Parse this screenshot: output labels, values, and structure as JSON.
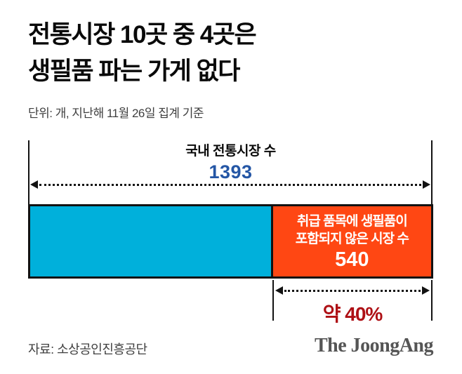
{
  "title": {
    "line1": "전통시장 10곳 중 4곳은",
    "line2": "생필품 파는 가게 없다"
  },
  "subtitle": "단위: 개, 지난해 11월 26일 집계 기준",
  "chart_data": {
    "type": "bar",
    "orientation": "horizontal",
    "title": "전통시장 10곳 중 4곳은 생필품 파는 가게 없다",
    "unit_note": "단위: 개, 지난해 11월 26일 집계 기준",
    "total": {
      "label": "국내 전통시장 수",
      "value": 1393
    },
    "highlight": {
      "label_line1": "취급 품목에 생필품이",
      "label_line2": "포함되지 않은 시장 수",
      "value": 540,
      "percent": 40,
      "percent_label": "약 40%"
    },
    "segments": [
      {
        "role": "remainder",
        "color": "#00B0DB"
      },
      {
        "role": "highlight",
        "color": "#FF4713",
        "value": 540
      }
    ],
    "legend_position": "none",
    "grid": false
  },
  "footer": {
    "source": "자료: 소상공인진흥공단",
    "logo": "The JoongAng"
  },
  "colors": {
    "bar_left": "#00B0DB",
    "bar_highlight": "#FF4713",
    "accent_blue": "#2456A5",
    "accent_dark_red": "#AE1015",
    "line_black": "#121212",
    "text_gray": "#3f3f3f",
    "logo_gray": "#555555"
  }
}
